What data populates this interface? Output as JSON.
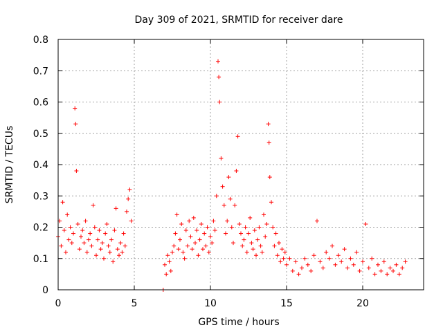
{
  "chart_data": {
    "type": "scatter",
    "title": "Day 309 of 2021, SRMTID for receiver dare",
    "xlabel": "GPS time / hours",
    "ylabel": "SRMTID / TECUs",
    "xlim": [
      0,
      24
    ],
    "ylim": [
      0,
      0.8
    ],
    "xticks": [
      0,
      5,
      10,
      15,
      20
    ],
    "yticks": [
      0,
      0.1,
      0.2,
      0.3,
      0.4,
      0.5,
      0.6,
      0.7,
      0.8
    ],
    "ytick_labels": [
      "0",
      "0.1",
      "0.2",
      "0.3",
      "0.4",
      "0.5",
      "0.6",
      "0.7",
      "0.8"
    ],
    "grid": true,
    "marker": "+",
    "color": "#ff0000",
    "series": [
      {
        "name": "SRMTID",
        "x": [
          0.0,
          0.1,
          0.2,
          0.3,
          0.4,
          0.5,
          0.6,
          0.7,
          0.8,
          0.9,
          1.0,
          1.1,
          1.15,
          1.2,
          1.3,
          1.4,
          1.5,
          1.6,
          1.7,
          1.8,
          1.9,
          2.0,
          2.1,
          2.2,
          2.3,
          2.4,
          2.5,
          2.6,
          2.7,
          2.8,
          2.9,
          3.0,
          3.1,
          3.2,
          3.3,
          3.4,
          3.5,
          3.6,
          3.7,
          3.8,
          3.9,
          4.0,
          4.1,
          4.2,
          4.3,
          4.4,
          4.5,
          4.6,
          4.7,
          4.8,
          6.9,
          7.0,
          7.1,
          7.2,
          7.3,
          7.4,
          7.5,
          7.6,
          7.7,
          7.8,
          7.9,
          8.0,
          8.1,
          8.2,
          8.3,
          8.4,
          8.5,
          8.6,
          8.7,
          8.8,
          8.9,
          9.0,
          9.1,
          9.2,
          9.3,
          9.4,
          9.5,
          9.6,
          9.7,
          9.8,
          9.9,
          10.0,
          10.1,
          10.2,
          10.3,
          10.4,
          10.5,
          10.55,
          10.6,
          10.7,
          10.8,
          10.9,
          11.0,
          11.1,
          11.2,
          11.3,
          11.4,
          11.5,
          11.6,
          11.7,
          11.8,
          11.9,
          12.0,
          12.1,
          12.2,
          12.3,
          12.4,
          12.5,
          12.6,
          12.7,
          12.8,
          12.9,
          13.0,
          13.1,
          13.2,
          13.3,
          13.4,
          13.5,
          13.6,
          13.7,
          13.8,
          13.85,
          13.9,
          14.0,
          14.1,
          14.2,
          14.3,
          14.4,
          14.5,
          14.6,
          14.7,
          14.8,
          14.9,
          15.0,
          15.2,
          15.4,
          15.6,
          15.8,
          16.0,
          16.2,
          16.4,
          16.6,
          16.8,
          17.0,
          17.2,
          17.4,
          17.6,
          17.8,
          18.0,
          18.2,
          18.4,
          18.6,
          18.8,
          19.0,
          19.2,
          19.4,
          19.6,
          19.8,
          20.0,
          20.2,
          20.4,
          20.6,
          20.8,
          21.0,
          21.2,
          21.4,
          21.6,
          21.8,
          22.0,
          22.2,
          22.4,
          22.6,
          22.8
        ],
        "y": [
          0.17,
          0.22,
          0.14,
          0.28,
          0.19,
          0.12,
          0.24,
          0.16,
          0.2,
          0.15,
          0.18,
          0.58,
          0.53,
          0.38,
          0.21,
          0.13,
          0.17,
          0.19,
          0.15,
          0.22,
          0.12,
          0.16,
          0.18,
          0.14,
          0.27,
          0.2,
          0.11,
          0.16,
          0.19,
          0.13,
          0.15,
          0.1,
          0.18,
          0.21,
          0.14,
          0.12,
          0.16,
          0.09,
          0.19,
          0.26,
          0.13,
          0.11,
          0.15,
          0.12,
          0.18,
          0.14,
          0.25,
          0.29,
          0.32,
          0.22,
          0.0,
          0.08,
          0.05,
          0.11,
          0.09,
          0.06,
          0.12,
          0.14,
          0.18,
          0.24,
          0.13,
          0.16,
          0.21,
          0.12,
          0.1,
          0.19,
          0.14,
          0.22,
          0.17,
          0.13,
          0.23,
          0.15,
          0.19,
          0.11,
          0.16,
          0.21,
          0.13,
          0.18,
          0.14,
          0.2,
          0.12,
          0.17,
          0.15,
          0.22,
          0.19,
          0.3,
          0.73,
          0.68,
          0.6,
          0.42,
          0.33,
          0.27,
          0.18,
          0.22,
          0.36,
          0.29,
          0.2,
          0.15,
          0.27,
          0.38,
          0.49,
          0.21,
          0.18,
          0.14,
          0.16,
          0.2,
          0.12,
          0.18,
          0.23,
          0.15,
          0.13,
          0.19,
          0.11,
          0.16,
          0.2,
          0.14,
          0.12,
          0.24,
          0.17,
          0.21,
          0.53,
          0.47,
          0.36,
          0.28,
          0.2,
          0.14,
          0.18,
          0.11,
          0.15,
          0.09,
          0.13,
          0.1,
          0.12,
          0.08,
          0.1,
          0.06,
          0.09,
          0.05,
          0.07,
          0.1,
          0.08,
          0.06,
          0.11,
          0.22,
          0.09,
          0.07,
          0.12,
          0.1,
          0.14,
          0.08,
          0.11,
          0.09,
          0.13,
          0.07,
          0.1,
          0.08,
          0.12,
          0.06,
          0.09,
          0.21,
          0.07,
          0.1,
          0.05,
          0.08,
          0.06,
          0.09,
          0.05,
          0.07,
          0.06,
          0.08,
          0.05,
          0.07,
          0.09
        ]
      }
    ]
  }
}
